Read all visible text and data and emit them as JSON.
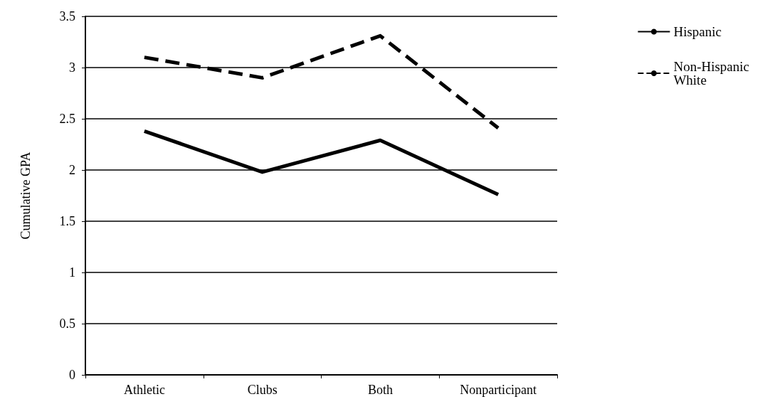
{
  "chart_data": {
    "type": "line",
    "ylabel": "Cumulative GPA",
    "categories": [
      "Athletic",
      "Clubs",
      "Both",
      "Nonparticipant"
    ],
    "series": [
      {
        "name": "Hispanic",
        "color": "#000000",
        "values": [
          2.38,
          1.98,
          2.29,
          1.76
        ],
        "line_style": "solid"
      },
      {
        "name": "Non-Hispanic White",
        "color": "#000000",
        "values": [
          3.1,
          2.9,
          3.31,
          2.41
        ],
        "line_style": "dashed"
      }
    ],
    "ylim": [
      0,
      3.5
    ],
    "yticks": [
      0,
      0.5,
      1,
      1.5,
      2,
      2.5,
      3,
      3.5
    ],
    "grid": "y",
    "legend": "right",
    "marker": "none"
  }
}
